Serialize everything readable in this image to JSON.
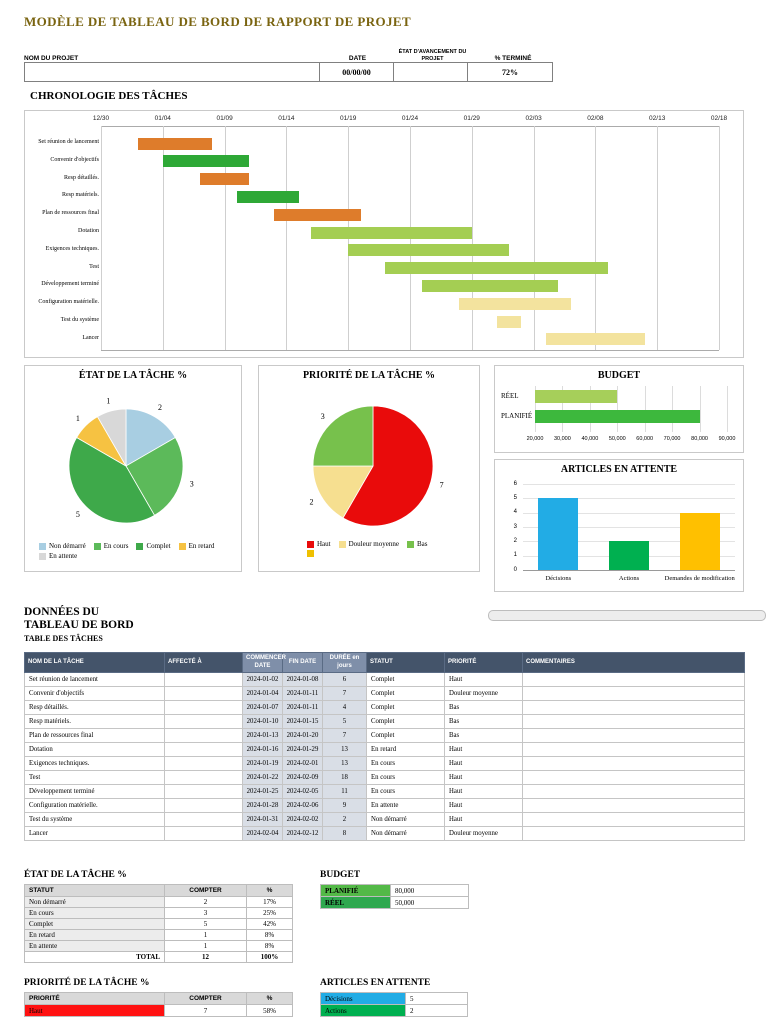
{
  "page": {
    "title": "MODÈLE DE TABLEAU DE BORD DE RAPPORT DE PROJET"
  },
  "info_bar": {
    "project_name_label": "NOM DU PROJET",
    "project_name_value": "",
    "date_label": "DATE",
    "date_value": "00/00/00",
    "status_label": "ÉTAT D'AVANCEMENT DU PROJET",
    "status_value": "",
    "pct_label": "% TERMINÉ",
    "pct_value": "72%"
  },
  "chart_data": [
    {
      "type": "gantt",
      "title": "CHRONOLOGIE DES TÂCHES",
      "x_ticks": [
        "12/30",
        "01/04",
        "01/09",
        "01/14",
        "01/19",
        "01/24",
        "01/29",
        "02/03",
        "02/08",
        "02/13",
        "02/18"
      ],
      "day_span": 50,
      "tasks": [
        {
          "name": "Set réunion de lancement",
          "start_offset": 3,
          "duration": 6,
          "color": "#DE7C2B"
        },
        {
          "name": "Convenir d'objectifs",
          "start_offset": 5,
          "duration": 7,
          "color": "#2EA836"
        },
        {
          "name": "Resp détaillés.",
          "start_offset": 8,
          "duration": 4,
          "color": "#DE7C2B"
        },
        {
          "name": "Resp matériels.",
          "start_offset": 11,
          "duration": 5,
          "color": "#2EA836"
        },
        {
          "name": "Plan de ressources final",
          "start_offset": 14,
          "duration": 7,
          "color": "#DE7C2B"
        },
        {
          "name": "Dotation",
          "start_offset": 17,
          "duration": 13,
          "color": "#A4CE53"
        },
        {
          "name": "Exigences techniques.",
          "start_offset": 20,
          "duration": 13,
          "color": "#A4CE53"
        },
        {
          "name": "Test",
          "start_offset": 23,
          "duration": 18,
          "color": "#A4CE53"
        },
        {
          "name": "Développement terminé",
          "start_offset": 26,
          "duration": 11,
          "color": "#A4CE53"
        },
        {
          "name": "Configuration matérielle.",
          "start_offset": 29,
          "duration": 9,
          "color": "#F3E39E"
        },
        {
          "name": "Test du système",
          "start_offset": 32,
          "duration": 2,
          "color": "#F3E39E"
        },
        {
          "name": "Lancer",
          "start_offset": 36,
          "duration": 8,
          "color": "#F3E39E"
        }
      ]
    },
    {
      "type": "pie",
      "title": "ÉTAT DE LA TÂCHE %",
      "labels": [
        "Non démarré",
        "En cours",
        "Complet",
        "En retard",
        "En attente"
      ],
      "values": [
        2,
        3,
        5,
        1,
        1
      ],
      "colors": [
        "#A8CEE2",
        "#5CBA5A",
        "#3EA94A",
        "#F6C242",
        "#D8D8D8"
      ],
      "legend": [
        {
          "label": "Non démarré",
          "color": "#A8CEE2"
        },
        {
          "label": "En cours",
          "color": "#5CBA5A"
        },
        {
          "label": "Complet",
          "color": "#3EA94A"
        },
        {
          "label": "En retard",
          "color": "#F6C242"
        },
        {
          "label": "En attente",
          "color": "#D8D8D8"
        }
      ]
    },
    {
      "type": "pie",
      "title": "PRIORITÉ DE LA TÂCHE %",
      "labels": [
        "Haut",
        "Douleur moyenne",
        "Bas"
      ],
      "values": [
        7,
        2,
        3
      ],
      "colors": [
        "#E90B0B",
        "#F6DF90",
        "#77C14C"
      ],
      "legend": [
        {
          "label": "Haut",
          "color": "#E90B0B"
        },
        {
          "label": "Douleur moyenne",
          "color": "#F6DF90"
        },
        {
          "label": "Bas",
          "color": "#77C14C"
        },
        {
          "label": "",
          "color": "#EFC000"
        }
      ]
    },
    {
      "type": "bar-horizontal",
      "title": "BUDGET",
      "categories": [
        "RÉEL",
        "PLANIFIÉ"
      ],
      "values": [
        50000,
        80000
      ],
      "colors": [
        "#A6CF5A",
        "#3DB83D"
      ],
      "xlim": [
        20000,
        90000
      ],
      "x_ticks": [
        "20,000",
        "30,000",
        "40,000",
        "50,000",
        "60,000",
        "70,000",
        "80,000",
        "90,000"
      ]
    },
    {
      "type": "bar",
      "title": "ARTICLES EN ATTENTE",
      "categories": [
        "Décisions",
        "Actions",
        "Demandes de modification"
      ],
      "values": [
        5,
        2,
        4
      ],
      "colors": [
        "#22ACE5",
        "#00B050",
        "#FFC000"
      ],
      "ylim": [
        0,
        6
      ],
      "y_ticks": [
        0,
        1,
        2,
        3,
        4,
        5,
        6
      ]
    }
  ],
  "task_table": {
    "heading_line1": "DONNÉES DU",
    "heading_line2": "TABLEAU DE BORD",
    "subheading": "TABLE DES TÂCHES",
    "columns": [
      "NOM DE LA TÂCHE",
      "AFFECTÉ À",
      "COMMENCER DATE",
      "FIN DATE",
      "DURÉE en jours",
      "STATUT",
      "PRIORITÉ",
      "COMMENTAIRES"
    ],
    "rows": [
      [
        "Set réunion de lancement",
        "",
        "2024-01-02",
        "2024-01-08",
        "6",
        "Complet",
        "Haut",
        ""
      ],
      [
        "Convenir d'objectifs",
        "",
        "2024-01-04",
        "2024-01-11",
        "7",
        "Complet",
        "Douleur moyenne",
        ""
      ],
      [
        "Resp détaillés.",
        "",
        "2024-01-07",
        "2024-01-11",
        "4",
        "Complet",
        "Bas",
        ""
      ],
      [
        "Resp matériels.",
        "",
        "2024-01-10",
        "2024-01-15",
        "5",
        "Complet",
        "Bas",
        ""
      ],
      [
        "Plan de ressources final",
        "",
        "2024-01-13",
        "2024-01-20",
        "7",
        "Complet",
        "Bas",
        ""
      ],
      [
        "Dotation",
        "",
        "2024-01-16",
        "2024-01-29",
        "13",
        "En retard",
        "Haut",
        ""
      ],
      [
        "Exigences techniques.",
        "",
        "2024-01-19",
        "2024-02-01",
        "13",
        "En cours",
        "Haut",
        ""
      ],
      [
        "Test",
        "",
        "2024-01-22",
        "2024-02-09",
        "18",
        "En cours",
        "Haut",
        ""
      ],
      [
        "Développement terminé",
        "",
        "2024-01-25",
        "2024-02-05",
        "11",
        "En cours",
        "Haut",
        ""
      ],
      [
        "Configuration matérielle.",
        "",
        "2024-01-28",
        "2024-02-06",
        "9",
        "En attente",
        "Haut",
        ""
      ],
      [
        "Test du système",
        "",
        "2024-01-31",
        "2024-02-02",
        "2",
        "Non démarré",
        "Haut",
        ""
      ],
      [
        "Lancer",
        "",
        "2024-02-04",
        "2024-02-12",
        "8",
        "Non démarré",
        "Douleur moyenne",
        ""
      ]
    ]
  },
  "status_table": {
    "heading": "ÉTAT DE LA TÂCHE %",
    "columns": [
      "STATUT",
      "COMPTER",
      "%"
    ],
    "rows": [
      [
        "Non démarré",
        "2",
        "17%"
      ],
      [
        "En cours",
        "3",
        "25%"
      ],
      [
        "Complet",
        "5",
        "42%"
      ],
      [
        "En retard",
        "1",
        "8%"
      ],
      [
        "En attente",
        "1",
        "8%"
      ]
    ],
    "total_row": [
      "TOTAL",
      "12",
      "100%"
    ]
  },
  "budget_table": {
    "heading": "BUDGET",
    "rows": [
      {
        "label": "PLANIFIÉ",
        "value": "80,000",
        "color": "#53B947"
      },
      {
        "label": "RÉEL",
        "value": "50,000",
        "color": "#2FA84F"
      }
    ]
  },
  "priority_table": {
    "heading": "PRIORITÉ DE LA TÂCHE %",
    "columns": [
      "PRIORITÉ",
      "COMPTER",
      "%"
    ],
    "rows": [
      {
        "label": "Haut",
        "count": "7",
        "pct": "58%",
        "color": "#FF1111"
      }
    ]
  },
  "articles_table": {
    "heading": "ARTICLES EN ATTENTE",
    "rows": [
      {
        "label": "Décisions",
        "value": "5",
        "color": "#22ACE5"
      },
      {
        "label": "Actions",
        "value": "2",
        "color": "#00B050"
      }
    ]
  }
}
